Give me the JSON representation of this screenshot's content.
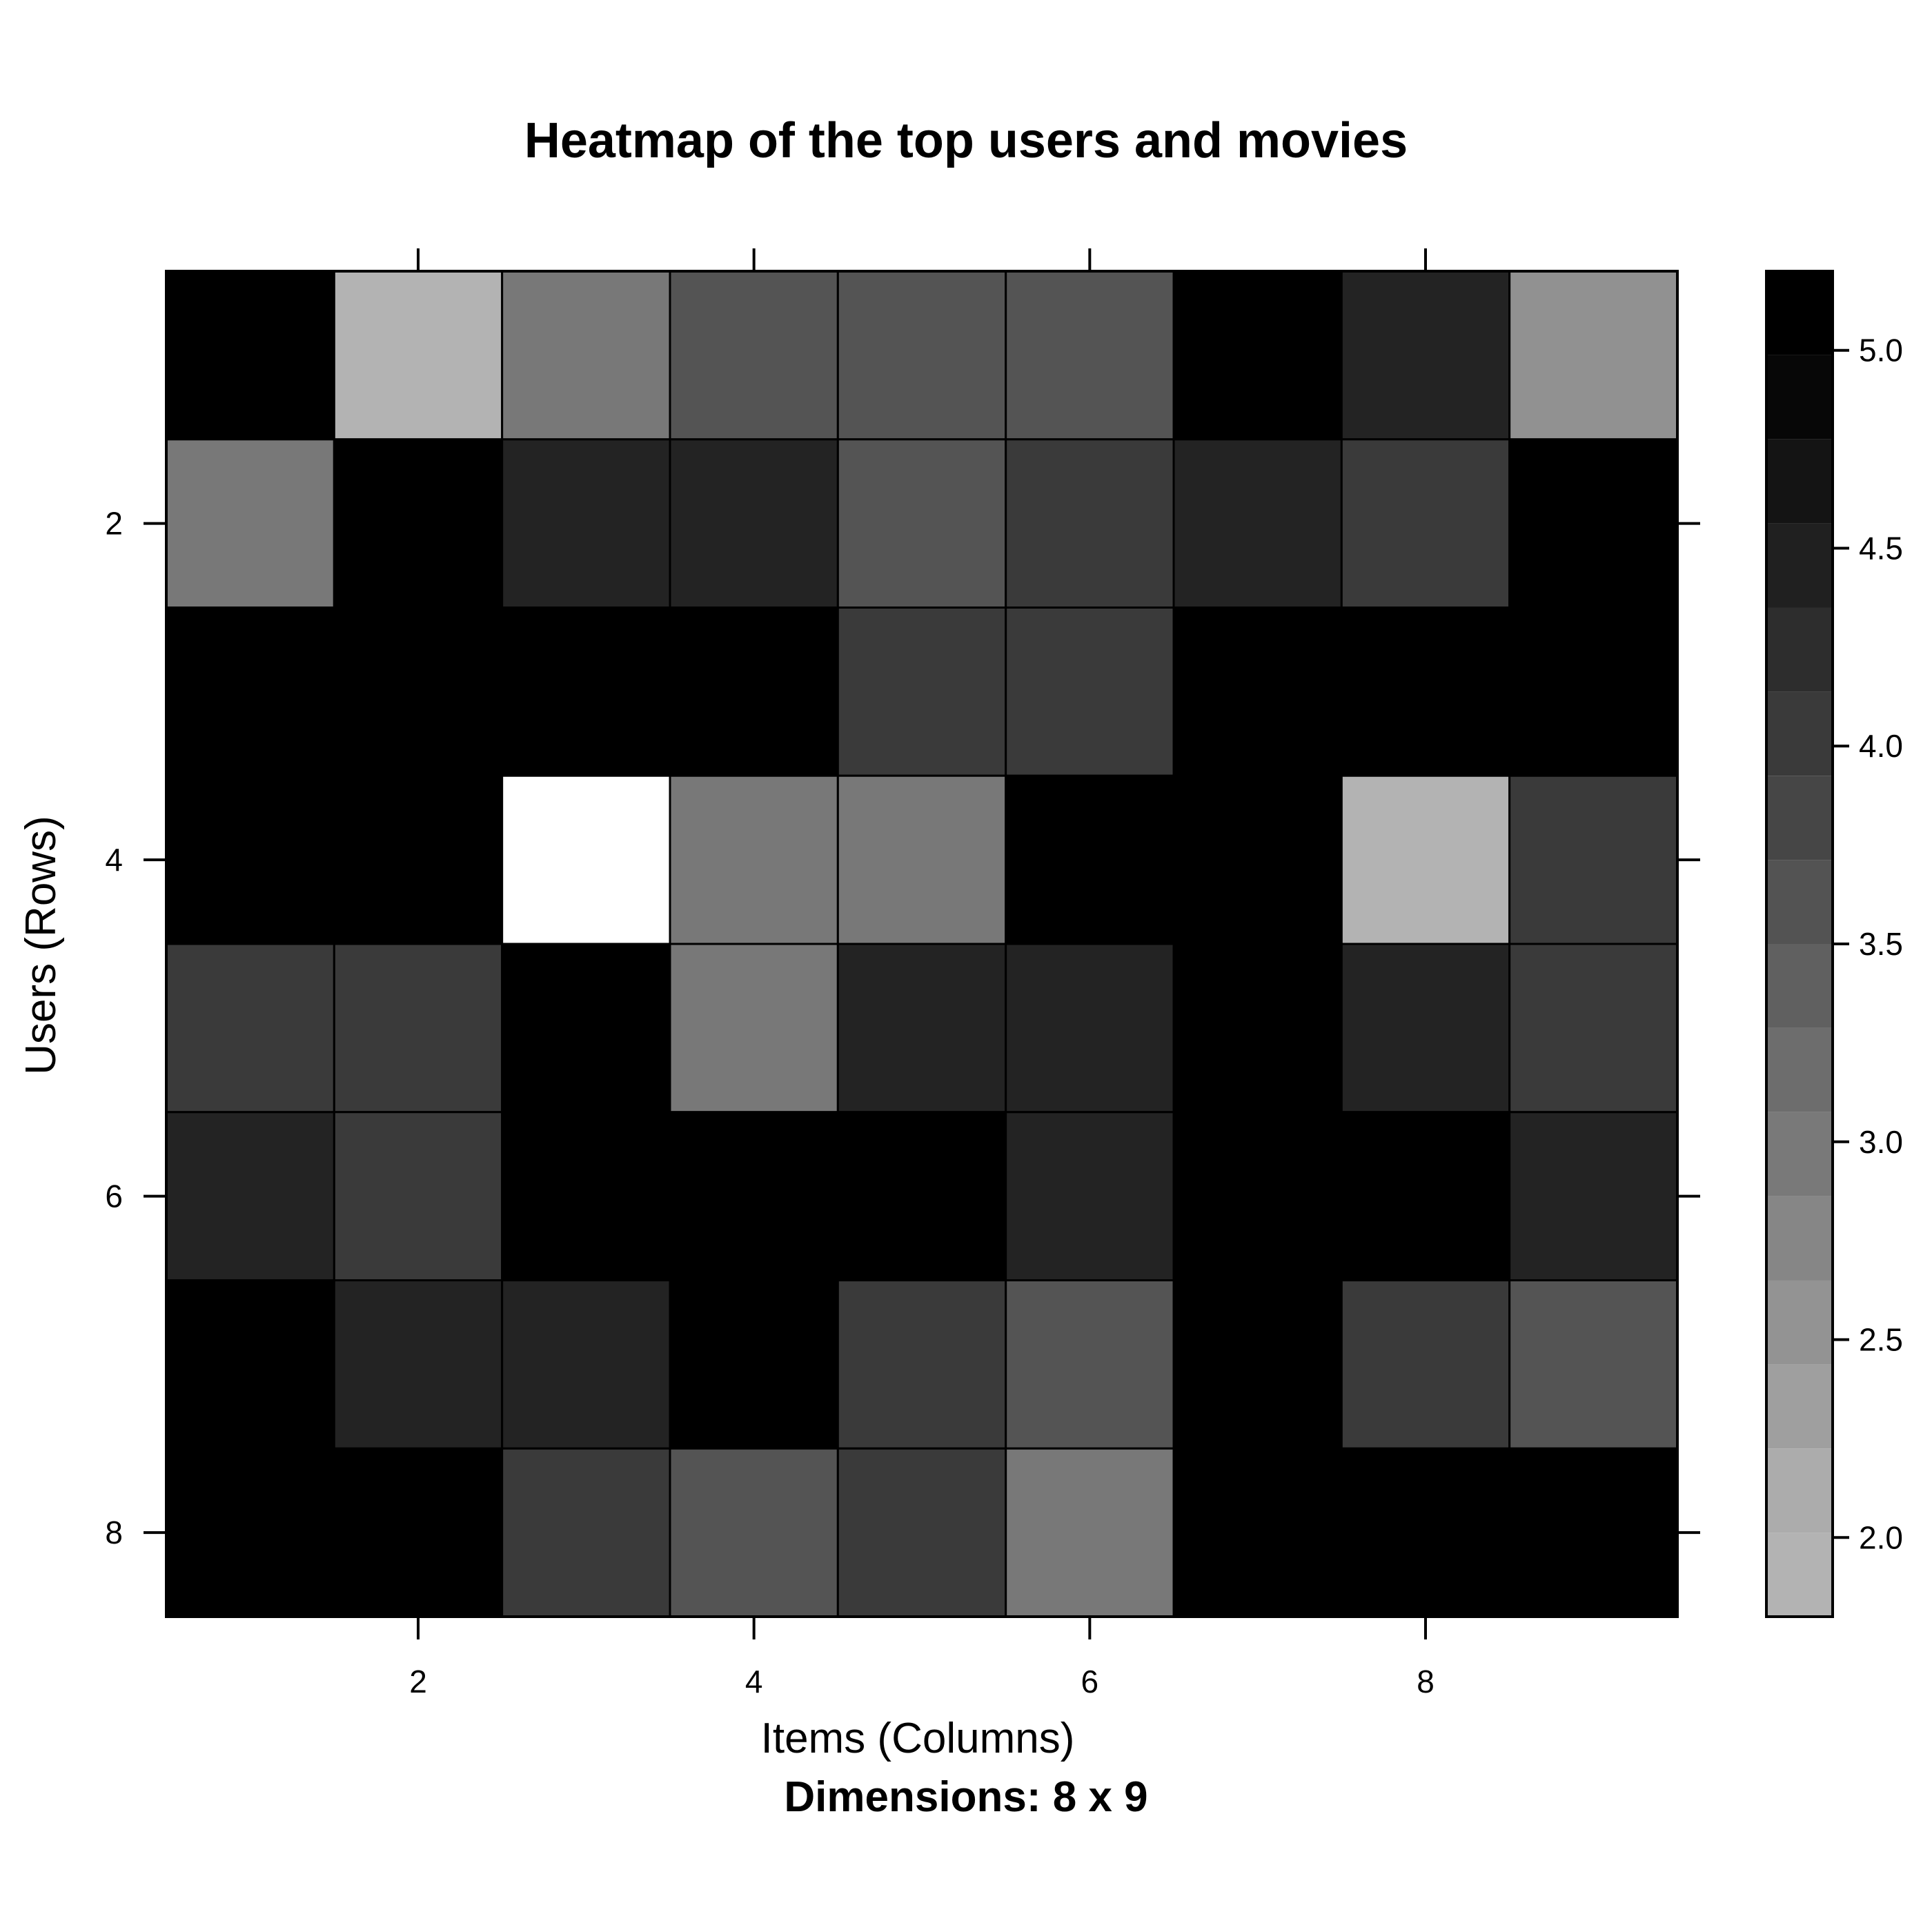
{
  "chart_data": {
    "type": "heatmap",
    "title": "Heatmap of the top users and movies",
    "xlabel": "Items (Columns)",
    "ylabel": "Users (Rows)",
    "sub": "Dimensions: 8 x 9",
    "n_rows": 8,
    "n_cols": 9,
    "x_ticks": [
      2,
      4,
      6,
      8
    ],
    "y_ticks": [
      2,
      4,
      6,
      8
    ],
    "values": [
      [
        5,
        2,
        3,
        3.5,
        3.5,
        3.5,
        5,
        4.5,
        2.5
      ],
      [
        3,
        5,
        4.5,
        4.5,
        3.5,
        4,
        4.5,
        4,
        5
      ],
      [
        5,
        5,
        5,
        5,
        4,
        4,
        5,
        5,
        5
      ],
      [
        5,
        5,
        1,
        3,
        3,
        5,
        5,
        2,
        4
      ],
      [
        4,
        4,
        5,
        3,
        4.5,
        4.5,
        5,
        4.5,
        4
      ],
      [
        4.5,
        4,
        5,
        5,
        5,
        4.5,
        5,
        5,
        4.5
      ],
      [
        5,
        4.5,
        4.5,
        5,
        4,
        3.5,
        5,
        4,
        3.5
      ],
      [
        5,
        5,
        4,
        3.5,
        4,
        3,
        5,
        5,
        5
      ]
    ],
    "colorbar": {
      "range": [
        1.8,
        5.2
      ],
      "ticks": [
        "2.0",
        "2.5",
        "3.0",
        "3.5",
        "4.0",
        "4.5",
        "5.0"
      ],
      "n_levels": 16
    },
    "colors": {
      "1": "#ffffff",
      "2": "#b3b3b3",
      "2.5": "#919191",
      "3": "#787878",
      "3.5": "#545454",
      "4": "#3a3a3a",
      "4.5": "#232323",
      "5": "#000000"
    }
  }
}
